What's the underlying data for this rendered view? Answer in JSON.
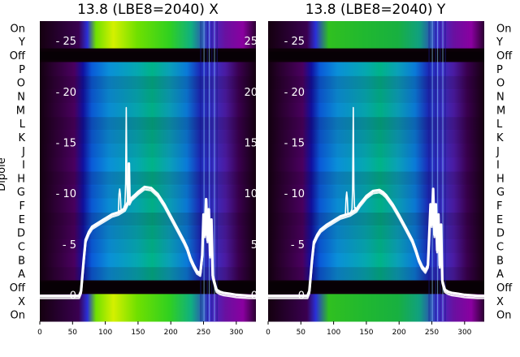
{
  "figure": {
    "ylabel_left": "Dipole",
    "left_row_labels": [
      "On",
      "Y",
      "Off",
      "P",
      "O",
      "N",
      "M",
      "L",
      "K",
      "J",
      "I",
      "H",
      "G",
      "F",
      "E",
      "D",
      "C",
      "B",
      "A",
      "Off",
      "X",
      "On"
    ],
    "right_row_labels": [
      "On",
      "Y",
      "Off",
      "P",
      "O",
      "N",
      "M",
      "L",
      "K",
      "J",
      "I",
      "H",
      "G",
      "F",
      "E",
      "D",
      "C",
      "B",
      "A",
      "Off",
      "X",
      "On"
    ]
  },
  "chart_data": [
    {
      "type": "line",
      "title": "13.8 (LBE8=2040) X",
      "background": "heatmap",
      "xlim": [
        0,
        330
      ],
      "ylim": [
        -2.5,
        27
      ],
      "xticks": [
        0,
        50,
        100,
        150,
        200,
        250,
        300
      ],
      "yticks": [
        0,
        5,
        10,
        15,
        20,
        25
      ],
      "series": [
        {
          "color": "#ffffff",
          "x": [
            0,
            60,
            63,
            65,
            67,
            70,
            75,
            80,
            90,
            100,
            110,
            120,
            125,
            130,
            133,
            135,
            136,
            137,
            140,
            145,
            150,
            160,
            170,
            175,
            180,
            190,
            200,
            210,
            220,
            225,
            228,
            230,
            235,
            240,
            245,
            248,
            250,
            252,
            254,
            256,
            258,
            260,
            262,
            264,
            266,
            268,
            270,
            275,
            280,
            290,
            300,
            310,
            320,
            330
          ],
          "y": [
            0,
            0,
            0.5,
            2,
            3.5,
            5.5,
            6.3,
            6.8,
            7.2,
            7.6,
            8.0,
            8.2,
            8.4,
            8.6,
            9,
            9.3,
            13,
            9.2,
            9.6,
            9.9,
            10.2,
            10.7,
            10.6,
            10.3,
            10.0,
            9.0,
            7.8,
            6.6,
            5.4,
            4.7,
            4.1,
            3.7,
            3.0,
            2.4,
            2.2,
            4.0,
            8.0,
            6.0,
            9.5,
            5.5,
            8.5,
            4.0,
            7.5,
            2.0,
            1.5,
            1.0,
            0.6,
            0.4,
            0.3,
            0.2,
            0.1,
            0.05,
            0,
            0
          ]
        },
        {
          "color": "#ffffff",
          "x": [
            128,
            130,
            131,
            132,
            133,
            134,
            136
          ],
          "y": [
            8.6,
            9,
            11,
            18.5,
            11,
            9,
            9.2
          ]
        },
        {
          "color": "#ffffff",
          "x": [
            120,
            121,
            122,
            123,
            124
          ],
          "y": [
            8.2,
            10,
            10.5,
            10,
            8.3
          ]
        }
      ]
    },
    {
      "type": "line",
      "title": "13.8 (LBE8=2040) Y",
      "background": "heatmap",
      "xlim": [
        0,
        330
      ],
      "ylim": [
        -2.5,
        27
      ],
      "xticks": [
        0,
        50,
        100,
        150,
        200,
        250,
        300
      ],
      "yticks": [
        0,
        5,
        10,
        15,
        20,
        25
      ],
      "series": [
        {
          "color": "#ffffff",
          "x": [
            0,
            60,
            63,
            65,
            67,
            70,
            75,
            80,
            90,
            100,
            110,
            120,
            125,
            130,
            135,
            140,
            145,
            150,
            160,
            170,
            175,
            180,
            190,
            200,
            210,
            220,
            225,
            228,
            230,
            235,
            240,
            244,
            246,
            248,
            250,
            252,
            254,
            256,
            258,
            260,
            262,
            264,
            266,
            268,
            270,
            275,
            280,
            290,
            300,
            310,
            320,
            330
          ],
          "y": [
            0,
            0,
            0.5,
            2,
            3.5,
            5.3,
            6.0,
            6.5,
            7.0,
            7.4,
            7.8,
            8.0,
            8.1,
            8.3,
            8.5,
            9.0,
            9.4,
            9.8,
            10.3,
            10.4,
            10.2,
            9.9,
            9.0,
            7.9,
            6.7,
            5.5,
            4.6,
            4.0,
            3.6,
            2.9,
            2.5,
            3.0,
            6.0,
            9.0,
            7.0,
            10.5,
            6.0,
            9.0,
            4.5,
            8.0,
            3.0,
            7.0,
            1.5,
            1.0,
            0.6,
            0.4,
            0.3,
            0.2,
            0.1,
            0.05,
            0,
            0
          ]
        },
        {
          "color": "#ffffff",
          "x": [
            126,
            128,
            129,
            130,
            131,
            132,
            134
          ],
          "y": [
            8.2,
            8.5,
            10.5,
            18.5,
            10.5,
            8.6,
            8.7
          ]
        },
        {
          "color": "#ffffff",
          "x": [
            118,
            119,
            120,
            121,
            122
          ],
          "y": [
            7.9,
            9.6,
            10.2,
            9.6,
            8.0
          ]
        }
      ]
    }
  ]
}
